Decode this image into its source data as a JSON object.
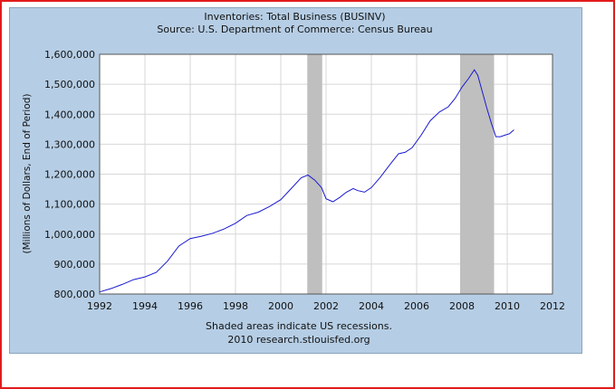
{
  "chart_data": {
    "type": "line",
    "title": "Inventories: Total Business (BUSINV)",
    "subtitle": "Source: U.S. Department of Commerce: Census Bureau",
    "xlabel": "",
    "ylabel": "(Millions of Dollars, End of Period)",
    "xlim": [
      1992,
      2012
    ],
    "ylim": [
      800000,
      1600000
    ],
    "x_ticks": [
      "1992",
      "1994",
      "1996",
      "1998",
      "2000",
      "2002",
      "2004",
      "2006",
      "2008",
      "2010",
      "2012"
    ],
    "y_ticks": [
      "800,000",
      "900,000",
      "1,000,000",
      "1,100,000",
      "1,200,000",
      "1,300,000",
      "1,400,000",
      "1,500,000",
      "1,600,000"
    ],
    "grid": true,
    "notes": [
      "Shaded areas indicate US recessions.",
      "2010 research.stlouisfed.org"
    ],
    "recessions": [
      [
        2001.17,
        2001.83
      ],
      [
        2007.92,
        2009.42
      ]
    ],
    "colors": {
      "line": "#1a1ad0",
      "recession": "#bfbfbf",
      "panel": "#b6cee5",
      "frame": "#e31c1c"
    },
    "series": [
      {
        "x": [
          1992.0,
          1992.5,
          1993.0,
          1993.5,
          1994.0,
          1994.5,
          1995.0,
          1995.5,
          1996.0,
          1996.5,
          1997.0,
          1997.5,
          1998.0,
          1998.5,
          1999.0,
          1999.5,
          2000.0,
          2000.5,
          2000.9,
          2001.2,
          2001.5,
          2001.8,
          2002.0,
          2002.3,
          2002.6,
          2002.9,
          2003.2,
          2003.4,
          2003.7,
          2004.0,
          2004.4,
          2004.8,
          2005.2,
          2005.5,
          2005.8,
          2006.2,
          2006.6,
          2007.0,
          2007.4,
          2007.7,
          2008.0,
          2008.3,
          2008.55,
          2008.7,
          2008.9,
          2009.1,
          2009.3,
          2009.5,
          2009.7,
          2009.9,
          2010.1,
          2010.3
        ],
        "y": [
          807000,
          818000,
          832000,
          848000,
          857000,
          872000,
          910000,
          960000,
          985000,
          993000,
          1003000,
          1017000,
          1036000,
          1062000,
          1073000,
          1092000,
          1115000,
          1155000,
          1188000,
          1197000,
          1180000,
          1155000,
          1118000,
          1108000,
          1122000,
          1140000,
          1152000,
          1145000,
          1140000,
          1155000,
          1190000,
          1230000,
          1268000,
          1273000,
          1288000,
          1330000,
          1378000,
          1407000,
          1425000,
          1453000,
          1490000,
          1520000,
          1548000,
          1530000,
          1475000,
          1420000,
          1370000,
          1325000,
          1325000,
          1330000,
          1335000,
          1348000
        ]
      }
    ]
  }
}
